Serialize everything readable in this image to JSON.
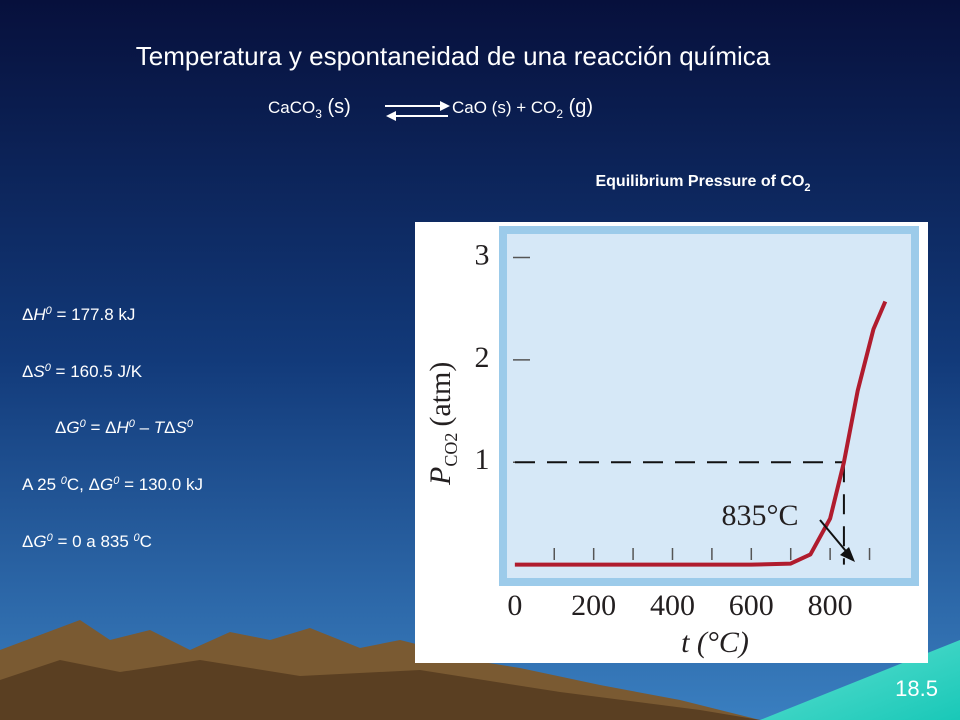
{
  "slide": {
    "title": "Temperatura y espontaneidad de una reacción química",
    "equation": [
      "CaCO",
      "3",
      " (s)",
      "CaO (s) + CO",
      "2",
      " (g)"
    ],
    "lines": [
      [
        "Δ",
        "H",
        "0",
        " = 177.8 kJ"
      ],
      [
        "Δ",
        "S",
        "0",
        " = 160.5 J/K"
      ],
      [
        "Δ",
        "G",
        "0",
        " = ",
        "Δ",
        "H",
        "0",
        " – ",
        "T",
        "Δ",
        "S",
        "0"
      ],
      [
        "A 25 ",
        "0",
        "C, ",
        "Δ",
        "G",
        "0",
        " = 130.0 kJ"
      ],
      [
        "Δ",
        "G",
        "0",
        " = 0 a 835 ",
        "0",
        "C"
      ]
    ],
    "page_number": "18.5"
  },
  "chart_data": {
    "type": "line",
    "title": "Equilibrium Pressure of CO",
    "title_sub": "2",
    "xlabel": "t (°C)",
    "ylabel": "P",
    "ylabel_sub": "CO2",
    "ylabel_unit": "(atm)",
    "annotation": "835°C",
    "x": [
      0,
      200,
      400,
      600,
      700,
      750,
      800,
      835,
      870,
      910,
      940
    ],
    "series": [
      {
        "name": "P CO2",
        "color": "#b01c2e",
        "values": [
          0,
          0,
          0,
          0,
          0.01,
          0.1,
          0.45,
          1.0,
          1.7,
          2.3,
          2.57
        ]
      }
    ],
    "reference": {
      "x": 835,
      "y": 1
    },
    "xlim": [
      -25,
      990
    ],
    "ylim": [
      -0.15,
      3.2
    ],
    "xticks": [
      0,
      200,
      400,
      600,
      800
    ],
    "xminorticks": [
      100,
      200,
      300,
      400,
      500,
      600,
      700,
      800,
      900
    ],
    "yticks": [
      1,
      2,
      3
    ]
  }
}
